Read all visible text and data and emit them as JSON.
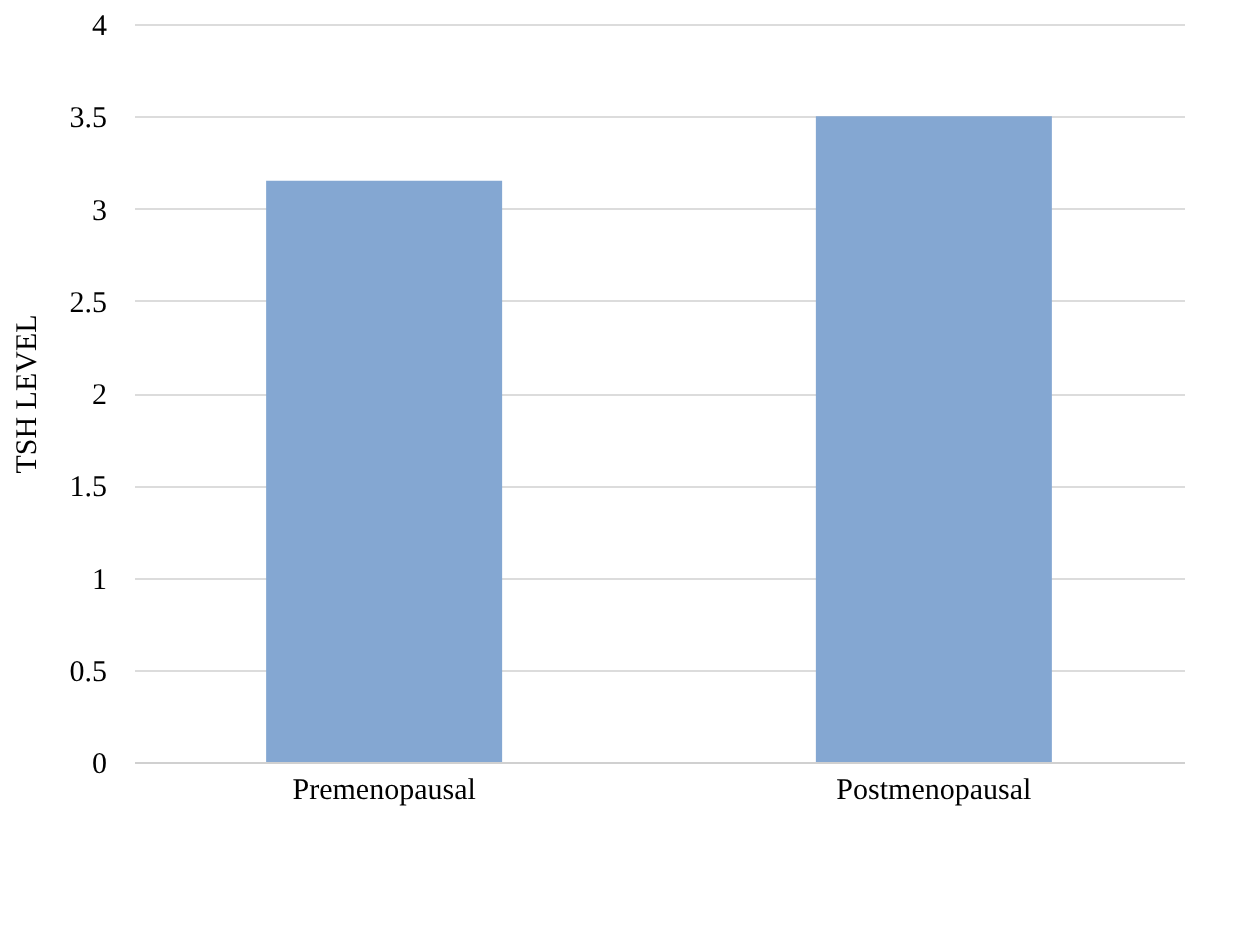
{
  "chart_data": {
    "type": "bar",
    "ylabel": "TSH LEVEL",
    "categories": [
      "Premenopausal",
      "Postmenopausal"
    ],
    "values": [
      3.15,
      3.5
    ],
    "color": "#84a7d2",
    "ylim": [
      0,
      4
    ],
    "yticks": [
      0,
      0.5,
      1,
      1.5,
      2,
      2.5,
      3,
      3.5,
      4
    ],
    "grid": "y"
  }
}
